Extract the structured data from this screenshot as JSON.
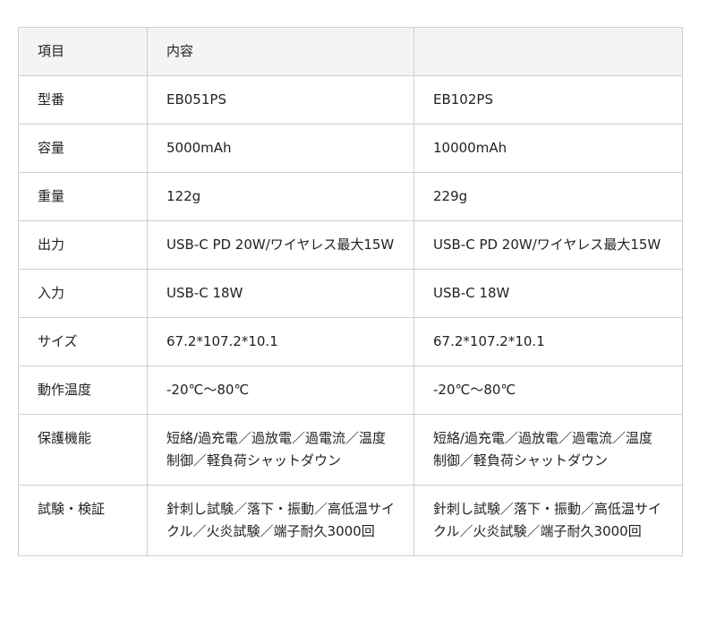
{
  "table": {
    "header": [
      "項目",
      "内容",
      ""
    ],
    "rows": [
      [
        "型番",
        "EB051PS",
        "EB102PS"
      ],
      [
        "容量",
        "5000mAh",
        "10000mAh"
      ],
      [
        "重量",
        "122g",
        "229g"
      ],
      [
        "出力",
        "USB-C PD 20W/ワイヤレス最大15W",
        "USB-C PD 20W/ワイヤレス最大15W"
      ],
      [
        "入力",
        "USB-C 18W",
        "USB-C 18W"
      ],
      [
        "サイズ",
        "67.2*107.2*10.1",
        "67.2*107.2*10.1"
      ],
      [
        "動作温度",
        "-20℃〜80℃",
        "-20℃〜80℃"
      ],
      [
        "保護機能",
        "短絡/過充電／過放電／過電流／温度制御／軽負荷シャットダウン",
        "短絡/過充電／過放電／過電流／温度制御／軽負荷シャットダウン"
      ],
      [
        "試験・検証",
        "針刺し試験／落下・振動／高低温サイクル／火炎試験／端子耐久3000回",
        "針刺し試験／落下・振動／高低温サイクル／火炎試験／端子耐久3000回"
      ]
    ]
  }
}
